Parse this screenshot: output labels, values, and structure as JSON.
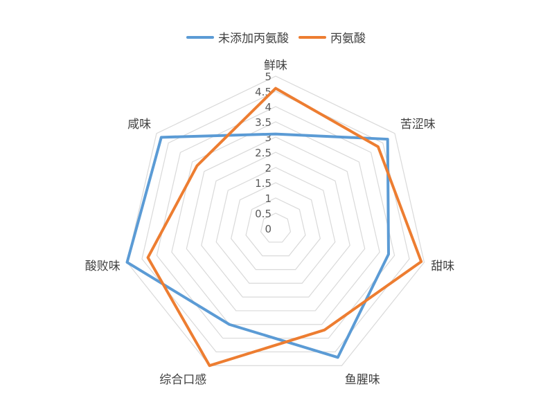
{
  "chart_data": {
    "type": "radar",
    "axes": [
      "鲜味",
      "苦涩味",
      "甜味",
      "鱼腥味",
      "综合口感",
      "酸败味",
      "咸味"
    ],
    "ticks": [
      "0",
      "0.5",
      "1",
      "1.5",
      "2",
      "2.5",
      "3",
      "3.5",
      "4",
      "4.5",
      "5"
    ],
    "rmin": 0,
    "rmax": 5,
    "grid": true,
    "legend_position": "top",
    "series": [
      {
        "name": "未添加丙氨酸",
        "color": "#5B9BD5",
        "values": [
          3.1,
          4.7,
          3.8,
          4.7,
          3.5,
          5.0,
          4.8
        ]
      },
      {
        "name": "丙氨酸",
        "color": "#ED7D31",
        "values": [
          4.6,
          4.3,
          4.9,
          3.7,
          5.0,
          4.3,
          3.3
        ]
      }
    ]
  }
}
